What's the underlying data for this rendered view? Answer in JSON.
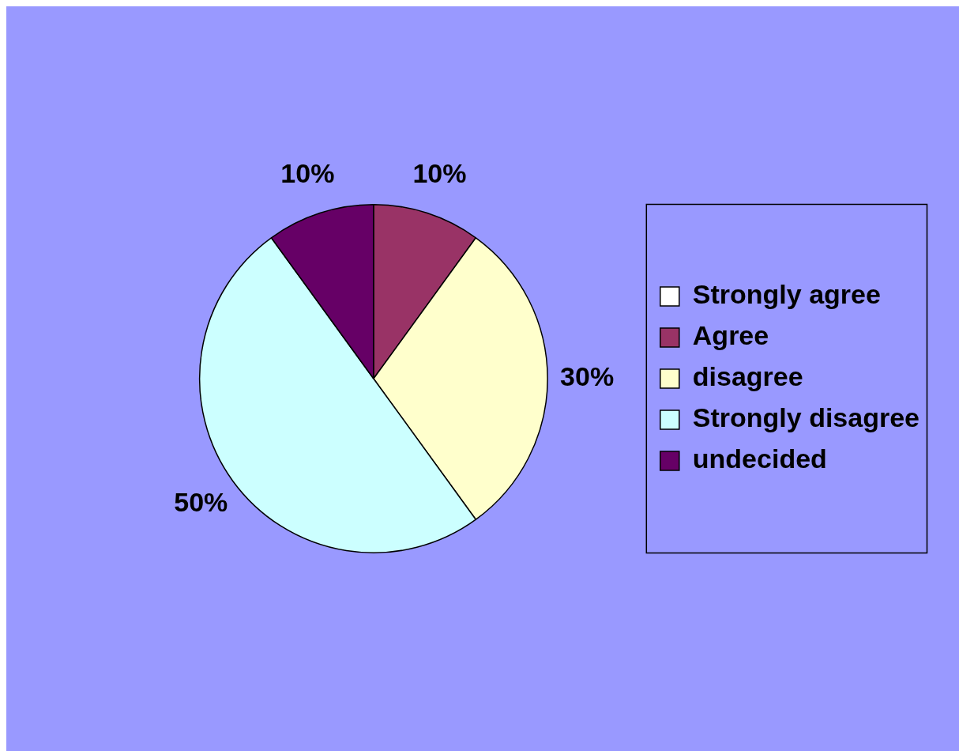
{
  "chart_data": {
    "type": "pie",
    "categories": [
      "Strongly agree",
      "Agree",
      "disagree",
      "Strongly disagree",
      "undecided"
    ],
    "values": [
      0,
      10,
      30,
      50,
      10
    ],
    "colors": [
      "#ffffff",
      "#993366",
      "#ffffcc",
      "#ccffff",
      "#660066"
    ],
    "value_labels": [
      null,
      "10%",
      "30%",
      "50%",
      "10%"
    ],
    "legend": "right"
  }
}
